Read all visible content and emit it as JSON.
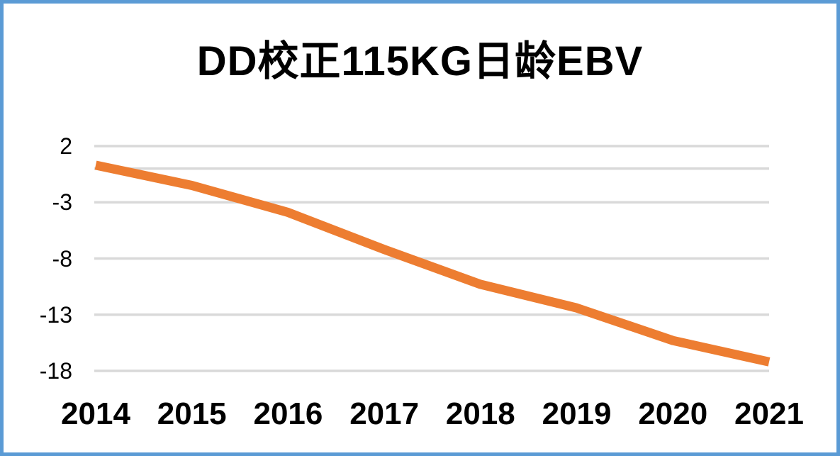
{
  "chart": {
    "frame_border_color": "#5B9BD5",
    "background_color": "#FFFFFF",
    "gridline_color": "#D9D9D9",
    "text_color": "#000000"
  },
  "chart_data": {
    "type": "line",
    "title": "DD校正115KG日龄EBV",
    "categories": [
      "2014",
      "2015",
      "2016",
      "2017",
      "2018",
      "2019",
      "2020",
      "2021"
    ],
    "series": [
      {
        "name": "DD校正115KG日龄EBV",
        "color": "#ED7D31",
        "values": [
          0.3,
          -1.5,
          -3.9,
          -7.2,
          -10.3,
          -12.4,
          -15.3,
          -17.2
        ]
      }
    ],
    "xlabel": "",
    "ylabel": "",
    "ylim": [
      -18,
      2
    ],
    "yticks": [
      2,
      -3,
      -8,
      -13,
      -18
    ],
    "zero_axis_line": 0,
    "grid": true,
    "legend_position": "none"
  }
}
